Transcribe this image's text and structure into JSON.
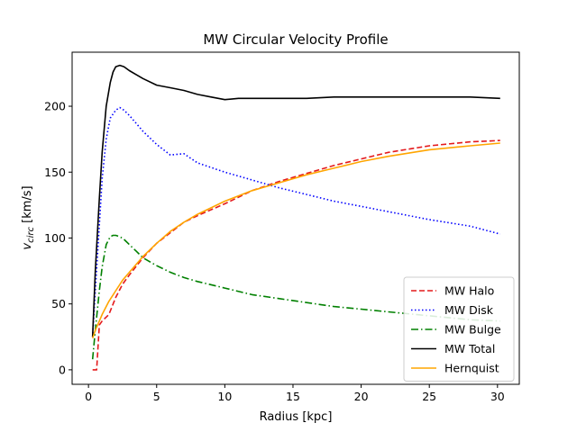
{
  "chart_data": {
    "type": "line",
    "title": "MW Circular Velocity Profile",
    "xlabel": "Radius [kpc]",
    "ylabel_main": "v",
    "ylabel_sub": "circ",
    "ylabel_unit": " [km/s]",
    "xlim": [
      -1.2,
      31.6
    ],
    "ylim": [
      -11,
      241
    ],
    "xticks": [
      0,
      5,
      10,
      15,
      20,
      25,
      30
    ],
    "xtick_labels": [
      "0",
      "5",
      "10",
      "15",
      "20",
      "25",
      "30"
    ],
    "yticks": [
      0,
      50,
      100,
      150,
      200
    ],
    "ytick_labels": [
      "0",
      "50",
      "100",
      "150",
      "200"
    ],
    "grid": false,
    "legend_position": "lower-right",
    "series": [
      {
        "name": "MW Halo",
        "color": "#e41a1c",
        "dash": "6 3",
        "x": [
          0.3,
          0.6,
          0.8,
          1.0,
          1.5,
          2.0,
          2.5,
          3.0,
          4.0,
          5.0,
          6.0,
          7.0,
          8.0,
          10.0,
          12.0,
          14.0,
          16.0,
          18.0,
          20.0,
          22.0,
          25.0,
          28.0,
          30.2
        ],
        "y": [
          0,
          0,
          34,
          37,
          42,
          55,
          65,
          72,
          85,
          96,
          104,
          112,
          117,
          126,
          136,
          143,
          149,
          155,
          160,
          165,
          170,
          173,
          174
        ]
      },
      {
        "name": "MW Disk",
        "color": "#0000ff",
        "dash": "1.5 2.5",
        "x": [
          0.3,
          0.5,
          0.8,
          1.0,
          1.3,
          1.6,
          2.0,
          2.3,
          2.6,
          3.0,
          3.5,
          4.0,
          5.0,
          6.0,
          7.0,
          8.0,
          10.0,
          12.0,
          14.0,
          16.0,
          18.0,
          20.0,
          22.0,
          25.0,
          28.0,
          30.2
        ],
        "y": [
          25,
          60,
          110,
          145,
          175,
          191,
          197,
          199,
          197,
          193,
          187,
          181,
          171,
          163,
          164,
          157,
          150,
          144,
          138,
          133,
          128,
          124,
          120,
          114,
          109,
          103
        ]
      },
      {
        "name": "MW Bulge",
        "color": "#008000",
        "dash": "8 3 1.5 3",
        "x": [
          0.3,
          0.5,
          0.8,
          1.0,
          1.3,
          1.6,
          1.8,
          2.0,
          2.3,
          2.6,
          3.0,
          3.5,
          4.0,
          5.0,
          6.0,
          7.0,
          8.0,
          10.0,
          12.0,
          14.0,
          16.0,
          18.0,
          20.0,
          22.0,
          25.0,
          28.0,
          30.2
        ],
        "y": [
          8,
          30,
          60,
          78,
          95,
          101,
          102,
          102,
          101,
          99,
          95,
          90,
          85,
          79,
          74,
          70,
          67,
          62,
          57,
          54,
          51,
          48,
          46,
          44,
          41,
          38,
          37
        ]
      },
      {
        "name": "MW Total",
        "color": "#000000",
        "dash": "",
        "x": [
          0.3,
          0.5,
          0.8,
          1.0,
          1.3,
          1.6,
          1.8,
          2.0,
          2.3,
          2.6,
          3.0,
          3.5,
          4.0,
          5.0,
          6.0,
          7.0,
          8.0,
          9.0,
          10.0,
          11.0,
          12.0,
          14.0,
          16.0,
          18.0,
          20.0,
          22.0,
          25.0,
          28.0,
          30.2
        ],
        "y": [
          25,
          75,
          130,
          165,
          200,
          218,
          226,
          230,
          231,
          230,
          227,
          224,
          221,
          216,
          214,
          212,
          209,
          207,
          205,
          206,
          206,
          206,
          206,
          207,
          207,
          207,
          207,
          207,
          206
        ]
      },
      {
        "name": "Hernquist",
        "color": "#ffa500",
        "dash": "",
        "x": [
          0.3,
          0.5,
          0.8,
          1.0,
          1.5,
          2.0,
          2.5,
          3.0,
          4.0,
          5.0,
          6.0,
          7.0,
          8.0,
          10.0,
          12.0,
          14.0,
          16.0,
          18.0,
          20.0,
          22.0,
          25.0,
          28.0,
          30.2
        ],
        "y": [
          24,
          30,
          37,
          42,
          52,
          60,
          68,
          74,
          86,
          96,
          105,
          112,
          118,
          128,
          136,
          142,
          148,
          153,
          158,
          162,
          167,
          170,
          172
        ]
      }
    ]
  }
}
